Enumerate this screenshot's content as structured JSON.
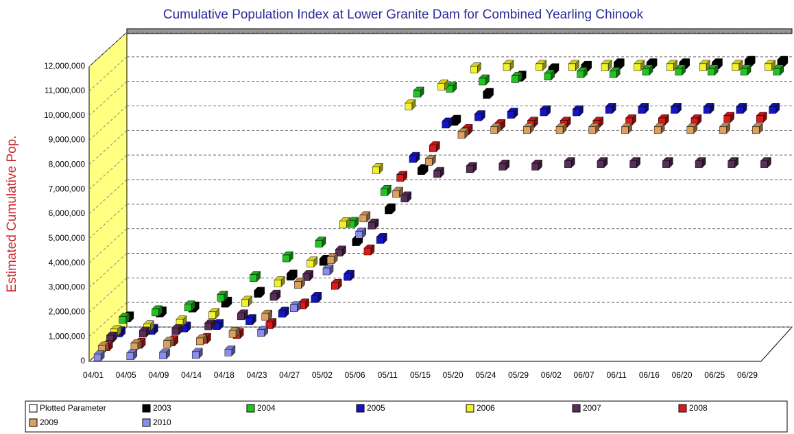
{
  "chart_data": {
    "type": "bar3d-scatter",
    "title": "Cumulative Population Index at Lower Granite Dam for Combined  Yearling Chinook",
    "y_label": "Estimated Cumulative Pop.",
    "legend_title": "Plotted Parameter",
    "categories": [
      "04/01",
      "04/05",
      "04/09",
      "04/14",
      "04/18",
      "04/23",
      "04/27",
      "05/02",
      "05/06",
      "05/11",
      "05/15",
      "05/20",
      "05/24",
      "05/29",
      "06/02",
      "06/07",
      "06/11",
      "06/16",
      "06/20",
      "06/25",
      "06/29"
    ],
    "ylim": [
      0,
      12000000
    ],
    "yticks": [
      0,
      {
        "value": 1000000,
        "label": "1,000,000"
      },
      {
        "value": 2000000,
        "label": "2,000,000"
      },
      {
        "value": 3000000,
        "label": "3,000,000"
      },
      {
        "value": 4000000,
        "label": "4,000,000"
      },
      {
        "value": 5000000,
        "label": "5,000,000"
      },
      {
        "value": 6000000,
        "label": "6,000,000"
      },
      {
        "value": 7000000,
        "label": "7,000,000"
      },
      {
        "value": 8000000,
        "label": "8,000,000"
      },
      {
        "value": 9000000,
        "label": "9,000,000"
      },
      {
        "value": 10000000,
        "label": "10,000,000"
      },
      {
        "value": 11000000,
        "label": "11,000,000"
      },
      {
        "value": 12000000,
        "label": "12,000,000"
      }
    ],
    "grid": true,
    "series": [
      {
        "name": "2003",
        "color": "#000000",
        "values": [
          500000,
          700000,
          900000,
          1100000,
          1500000,
          2200000,
          2800000,
          3600000,
          4900000,
          6500000,
          8500000,
          9600000,
          10300000,
          10600000,
          10700000,
          10800000,
          10800000,
          10800000,
          10800000,
          10900000,
          10900000
        ]
      },
      {
        "name": "2004",
        "color": "#22c322",
        "values": [
          600000,
          900000,
          1100000,
          1500000,
          2300000,
          3100000,
          3700000,
          4500000,
          5800000,
          9800000,
          10000000,
          10300000,
          10400000,
          10500000,
          10600000,
          10600000,
          10700000,
          10700000,
          10700000,
          10700000,
          10700000
        ]
      },
      {
        "name": "2005",
        "color": "#1515c8",
        "values": [
          200000,
          300000,
          400000,
          500000,
          700000,
          1000000,
          1600000,
          2500000,
          4000000,
          7300000,
          8700000,
          9000000,
          9100000,
          9200000,
          9200000,
          9300000,
          9300000,
          9300000,
          9300000,
          9300000,
          9300000
        ]
      },
      {
        "name": "2006",
        "color": "#f2f22a",
        "values": [
          400000,
          600000,
          800000,
          1100000,
          1600000,
          2400000,
          3200000,
          4800000,
          7000000,
          9600000,
          10400000,
          11100000,
          11200000,
          11200000,
          11200000,
          11200000,
          11200000,
          11200000,
          11200000,
          11200000,
          11200000
        ]
      },
      {
        "name": "2007",
        "color": "#5a2e5a",
        "values": [
          300000,
          500000,
          600000,
          800000,
          1200000,
          2000000,
          2800000,
          3800000,
          4900000,
          6000000,
          7000000,
          7200000,
          7300000,
          7300000,
          7400000,
          7400000,
          7400000,
          7400000,
          7400000,
          7400000,
          7400000
        ]
      },
      {
        "name": "2008",
        "color": "#dd1a1a",
        "values": [
          100000,
          200000,
          300000,
          400000,
          600000,
          1000000,
          1800000,
          2600000,
          4000000,
          7000000,
          8200000,
          8900000,
          9100000,
          9200000,
          9200000,
          9200000,
          9300000,
          9300000,
          9300000,
          9400000,
          9400000
        ]
      },
      {
        "name": "2009",
        "color": "#dca060",
        "values": [
          200000,
          300000,
          400000,
          500000,
          800000,
          1500000,
          2800000,
          3800000,
          5500000,
          6500000,
          7800000,
          8900000,
          9100000,
          9100000,
          9100000,
          9100000,
          9100000,
          9100000,
          9100000,
          9100000,
          9100000
        ]
      },
      {
        "name": "2010",
        "color": "#8c8cee",
        "values": [
          0,
          50000,
          80000,
          100000,
          200000,
          1000000,
          2000000,
          3500000,
          5000000,
          null,
          null,
          null,
          null,
          null,
          null,
          null,
          null,
          null,
          null,
          null,
          null
        ]
      }
    ]
  }
}
